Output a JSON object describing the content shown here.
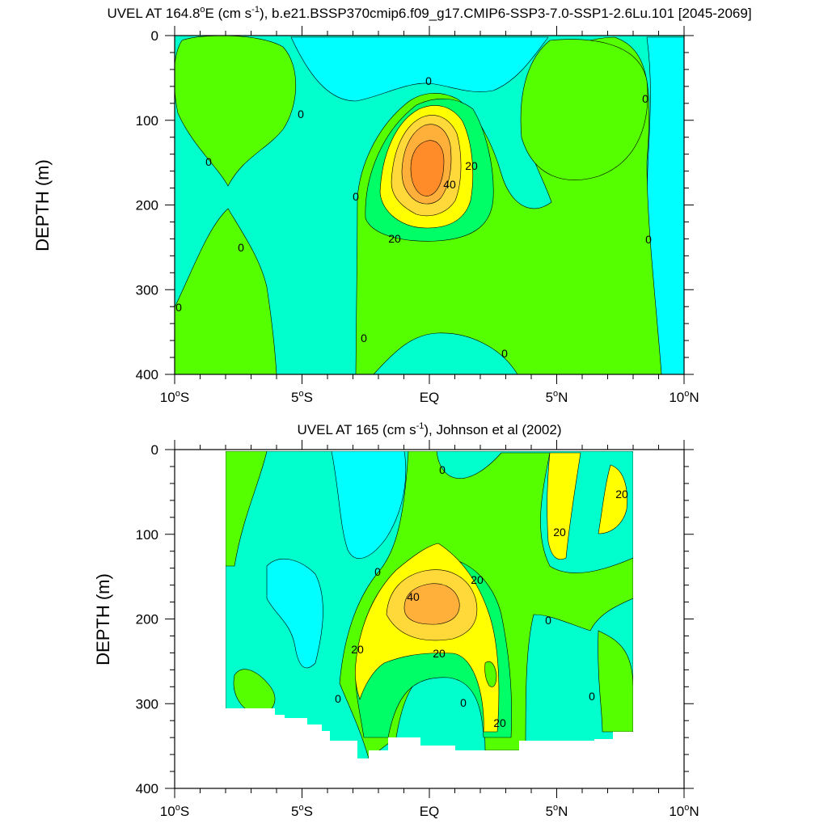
{
  "colors": {
    "cyan": "#00ffff",
    "aquamarine": "#00ffcc",
    "green": "#00ff66",
    "chartreuse": "#55ff00",
    "yellow": "#ffff00",
    "gold": "#ffd83a",
    "orange": "#ffb03a",
    "dark_orange": "#ff8c28",
    "axis": "#000000"
  },
  "chart_data": [
    {
      "type": "heatmap",
      "subtype": "filled-contour",
      "title_main": "UVEL AT 164.8",
      "title_o": "o",
      "title_e": "E (cm s",
      "title_exp": "-1",
      "title_rest": "), b.e21.BSSP370cmip6.f09_g17.CMIP6-SSP3-7.0-SSP1-2.6Lu.101 [2045-2069]",
      "ylabel": "DEPTH (m)",
      "xlim": [
        -10,
        10
      ],
      "ylim": [
        0,
        400
      ],
      "y_inverted": true,
      "yticks": [
        "0",
        "100",
        "200",
        "300",
        "400"
      ],
      "xticks": [
        {
          "deg": "10",
          "hemi": "S"
        },
        {
          "deg": "5",
          "hemi": "S"
        },
        {
          "deg": "",
          "hemi": "EQ"
        },
        {
          "deg": "5",
          "hemi": "N"
        },
        {
          "deg": "10",
          "hemi": "N"
        }
      ],
      "contour_levels": [
        0,
        10,
        20,
        30,
        40,
        50
      ],
      "contour_labels": [
        "0",
        "0",
        "0",
        "0",
        "0",
        "0",
        "0",
        "0",
        "0",
        "0",
        "20",
        "40",
        "20"
      ],
      "max_core": {
        "lat": 0,
        "depth": 165,
        "value": 55
      }
    },
    {
      "type": "heatmap",
      "subtype": "filled-contour",
      "title_main": "UVEL AT 165 (cm s",
      "title_exp": "-1",
      "title_rest": "), Johnson et al (2002)",
      "ylabel": "DEPTH (m)",
      "xlim": [
        -10,
        10
      ],
      "ylim": [
        0,
        400
      ],
      "y_inverted": true,
      "yticks": [
        "0",
        "100",
        "200",
        "300",
        "400"
      ],
      "xticks": [
        {
          "deg": "10",
          "hemi": "S"
        },
        {
          "deg": "5",
          "hemi": "S"
        },
        {
          "deg": "",
          "hemi": "EQ"
        },
        {
          "deg": "5",
          "hemi": "N"
        },
        {
          "deg": "10",
          "hemi": "N"
        }
      ],
      "data_extent": {
        "lat": [
          -8,
          8
        ],
        "depth": [
          0,
          365
        ]
      },
      "contour_levels": [
        0,
        10,
        20,
        30,
        40
      ],
      "contour_labels": [
        "0",
        "0",
        "0",
        "0",
        "0",
        "20",
        "40",
        "20",
        "20",
        "20",
        "20",
        "20"
      ],
      "max_core": {
        "lat": 0,
        "depth": 185,
        "value": 45
      }
    }
  ]
}
